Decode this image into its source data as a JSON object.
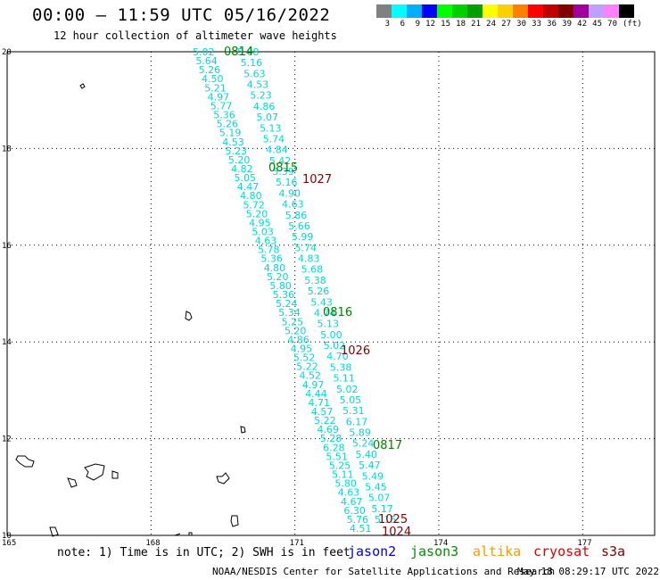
{
  "header": {
    "title": "00:00 – 11:59 UTC 05/16/2022",
    "subtitle": "12 hour collection of altimeter wave heights"
  },
  "colorbar": {
    "colors": [
      "#808080",
      "#00ffff",
      "#00b0ff",
      "#0000ff",
      "#00ff00",
      "#00d000",
      "#00a000",
      "#ffff00",
      "#ffd000",
      "#ff8000",
      "#ff0000",
      "#c00000",
      "#800000",
      "#a000a0",
      "#c0a0ff",
      "#ff80ff",
      "#000000"
    ],
    "labels": [
      "3",
      "6",
      "9",
      "12",
      "15",
      "18",
      "21",
      "24",
      "27",
      "30",
      "33",
      "36",
      "39",
      "42",
      "45",
      "70",
      "(ft)"
    ]
  },
  "map": {
    "lon_ticks": [
      "165",
      "168",
      "171",
      "174",
      "177"
    ],
    "lat_ticks": [
      "20",
      "18",
      "16",
      "14",
      "12",
      "10"
    ],
    "lon_range": [
      165,
      178.5
    ],
    "lat_range": [
      10,
      20
    ],
    "grid": "dotted"
  },
  "tracks": [
    {
      "satellite": "jason3",
      "color": "#00a000",
      "time_color": "#008000",
      "times": [
        "0814",
        "0815",
        "0816",
        "0817"
      ],
      "values": [
        "5.02",
        "5.64",
        "5.26",
        "4.50",
        "5.21",
        "4.97",
        "5.77",
        "5.36",
        "5.26",
        "5.19",
        "4.53",
        "5.23",
        "5.20",
        "4.82",
        "5.05",
        "4.47",
        "4.80",
        "5.72",
        "5.20",
        "4.95",
        "5.03",
        "4.63",
        "5.78",
        "5.36",
        "4.80",
        "5.20",
        "5.80",
        "5.36",
        "5.24",
        "5.34",
        "5.25",
        "5.20",
        "4.86",
        "4.95",
        "5.52",
        "5.22",
        "4.52",
        "4.97",
        "4.44",
        "4.71",
        "4.57",
        "5.22",
        "4.69",
        "5.28",
        "6.28",
        "5.51",
        "5.25",
        "5.11",
        "5.80",
        "4.63",
        "4.67",
        "6.30",
        "5.76",
        "4.51"
      ]
    },
    {
      "satellite": "jason3-track-b",
      "color": "#00a000",
      "time_color": "#008000",
      "times": [],
      "values": [
        "5.08",
        "5.16",
        "5.63",
        "4.53",
        "5.23",
        "4.86",
        "5.07",
        "5.13",
        "5.74",
        "4.84",
        "5.42",
        "5.39",
        "5.16",
        "4.90",
        "4.63",
        "5.86",
        "5.66",
        "5.99",
        "5.74",
        "4.83",
        "5.68",
        "5.38",
        "5.26",
        "5.43",
        "4.74",
        "5.13",
        "5.00",
        "5.02",
        "4.70",
        "5.38",
        "5.11",
        "5.02",
        "5.05",
        "5.31",
        "6.17",
        "5.89",
        "5.24",
        "5.40",
        "5.47",
        "5.49",
        "5.45",
        "5.07",
        "5.17",
        "5.15"
      ]
    },
    {
      "satellite": "cryosat",
      "color": "#00ffff",
      "time_color": "#800000",
      "times": [
        "1027",
        "1026",
        "1025",
        "1024"
      ],
      "values": []
    }
  ],
  "legend": {
    "note": "note: 1) Time is in UTC; 2) SWH is in feet",
    "items": [
      {
        "label": "jason2",
        "color": "#0000dd"
      },
      {
        "label": "jason3",
        "color": "#009000"
      },
      {
        "label": "altika",
        "color": "#ff9900"
      },
      {
        "label": "cryosat",
        "color": "#dd0000"
      },
      {
        "label": "s3a",
        "color": "#880000"
      }
    ]
  },
  "footer": {
    "credit": "NOAA/NESDIS Center for Satellite Applications and Research",
    "timestamp": "May 18 08:29:17 UTC 2022"
  }
}
